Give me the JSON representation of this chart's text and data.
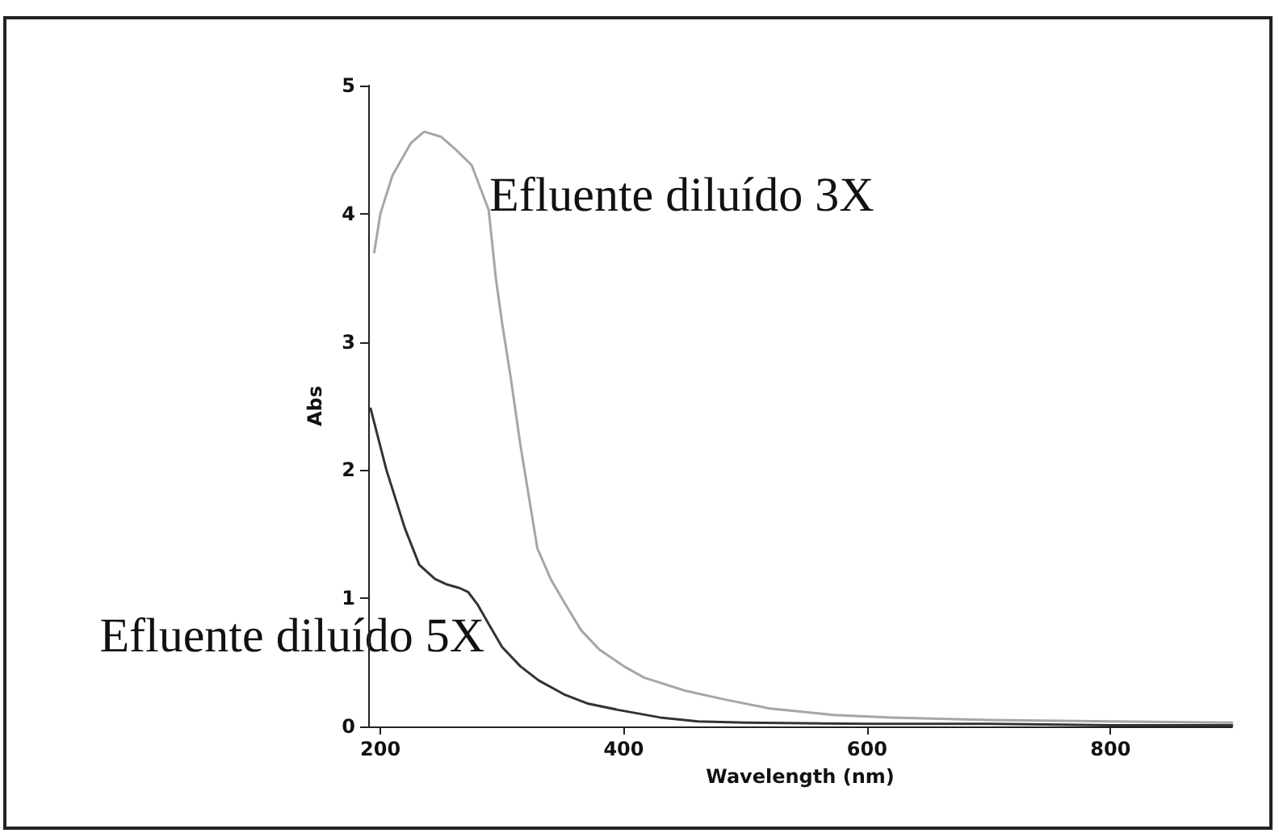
{
  "chart_data": {
    "type": "line",
    "xlabel": "Wavelength (nm)",
    "ylabel": "Abs",
    "xlim": [
      190,
      900
    ],
    "xticks": [
      200,
      400,
      600,
      800
    ],
    "ylim": [
      0,
      5
    ],
    "yticks": [
      0,
      1,
      2,
      3,
      4,
      5
    ],
    "grid": false,
    "marker": "none",
    "line_style": "solid",
    "series": [
      {
        "color": "#a6a6a6",
        "x": [
          195,
          200,
          210,
          225,
          236,
          250,
          262,
          275,
          289,
          295,
          300,
          307,
          315,
          329,
          340,
          351,
          365,
          380,
          400,
          417,
          450,
          483,
          520,
          572,
          620,
          700,
          800,
          900
        ],
        "values": [
          3.7,
          4.0,
          4.3,
          4.55,
          4.64,
          4.6,
          4.5,
          4.38,
          4.03,
          3.49,
          3.15,
          2.73,
          2.2,
          1.39,
          1.15,
          0.97,
          0.75,
          0.6,
          0.47,
          0.38,
          0.28,
          0.21,
          0.14,
          0.09,
          0.07,
          0.05,
          0.04,
          0.03
        ]
      },
      {
        "color": "#333333",
        "x": [
          192,
          205,
          220,
          232,
          245,
          254,
          265,
          272,
          280,
          289,
          300,
          315,
          330,
          351,
          370,
          395,
          430,
          461,
          500,
          600,
          700,
          800,
          900
        ],
        "values": [
          2.48,
          2.0,
          1.55,
          1.26,
          1.15,
          1.11,
          1.08,
          1.05,
          0.95,
          0.8,
          0.62,
          0.47,
          0.36,
          0.25,
          0.18,
          0.13,
          0.07,
          0.04,
          0.03,
          0.02,
          0.02,
          0.01,
          0.01
        ]
      }
    ],
    "annotations": [
      "Efluente diluído 3X",
      "Efluente diluído 5X"
    ]
  }
}
